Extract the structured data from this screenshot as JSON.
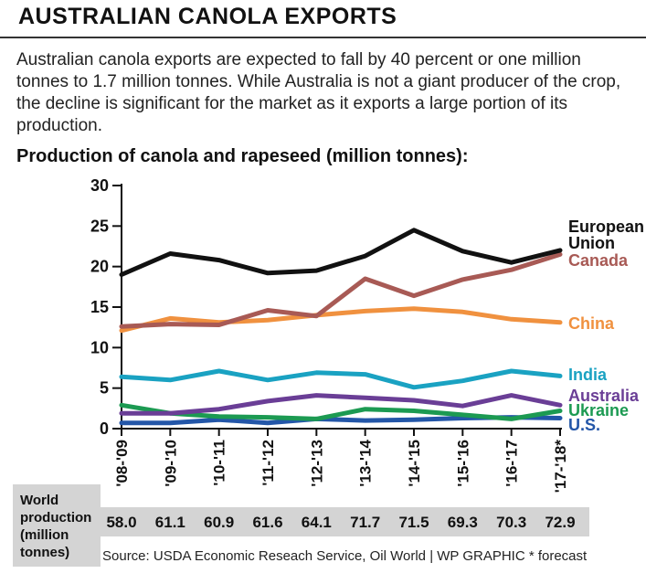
{
  "header": {
    "title": "AUSTRALIAN CANOLA EXPORTS",
    "subtitle": "Australian canola exports are expected to fall by 40 percent or one million tonnes to 1.7 million tonnes. While Australia is not a giant producer of the crop, the decline is significant for the market as it exports a large portion of its production."
  },
  "chart_data": {
    "type": "line",
    "title": "Production of canola and rapeseed (million tonnes):",
    "categories": [
      "'08-'09",
      "'09-'10",
      "'10-'11",
      "'11-'12",
      "'12-'13",
      "'13-'14",
      "'14-'15",
      "'15-'16",
      "'16-'17",
      "'17-'18*"
    ],
    "yticks": [
      0,
      5,
      10,
      15,
      20,
      25,
      30
    ],
    "ylim": [
      0,
      30
    ],
    "grid": false,
    "series": [
      {
        "name": "European Union",
        "color": "#111111",
        "values": [
          19.0,
          21.6,
          20.8,
          19.2,
          19.5,
          21.3,
          24.5,
          21.9,
          20.5,
          22.0
        ]
      },
      {
        "name": "Canada",
        "color": "#a85a55",
        "values": [
          12.6,
          12.9,
          12.8,
          14.6,
          13.9,
          18.5,
          16.4,
          18.4,
          19.6,
          21.5
        ]
      },
      {
        "name": "China",
        "color": "#f0913f",
        "values": [
          12.1,
          13.6,
          13.1,
          13.4,
          14.0,
          14.5,
          14.8,
          14.4,
          13.5,
          13.1
        ]
      },
      {
        "name": "India",
        "color": "#1aa2c2",
        "values": [
          6.4,
          6.0,
          7.1,
          6.0,
          6.9,
          6.7,
          5.1,
          5.9,
          7.1,
          6.5
        ]
      },
      {
        "name": "Australia",
        "color": "#6a3e96",
        "values": [
          1.9,
          1.9,
          2.4,
          3.4,
          4.1,
          3.8,
          3.5,
          2.8,
          4.1,
          2.9
        ]
      },
      {
        "name": "Ukraine",
        "color": "#1c9a52",
        "values": [
          2.9,
          1.9,
          1.5,
          1.4,
          1.2,
          2.4,
          2.2,
          1.7,
          1.2,
          2.2
        ]
      },
      {
        "name": "U.S.",
        "color": "#2356a8",
        "values": [
          0.7,
          0.7,
          1.1,
          0.7,
          1.2,
          1.0,
          1.1,
          1.3,
          1.4,
          1.3
        ]
      }
    ],
    "legend_labels": [
      "European Union",
      "Canada",
      "China",
      "India",
      "Australia",
      "Ukraine",
      "U.S."
    ],
    "legend_placement": "right, at line ends",
    "world_production": {
      "label": "World production (million tonnes)",
      "values": [
        "58.0",
        "61.1",
        "60.9",
        "61.6",
        "64.1",
        "71.7",
        "71.5",
        "69.3",
        "70.3",
        "72.9"
      ]
    }
  },
  "footer": {
    "source": "Source: USDA Economic Reseach Service, Oil World  |  WP GRAPHIC   * forecast"
  }
}
